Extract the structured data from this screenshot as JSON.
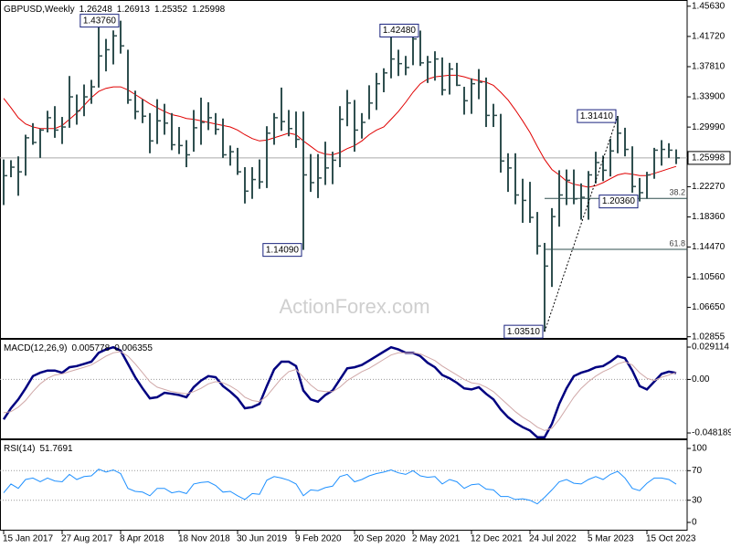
{
  "chart_data": [
    {
      "type": "ohlc",
      "title": "GBPUSD,Weekly",
      "ohlc": [
        1.26248,
        1.26913,
        1.25352,
        1.25998
      ],
      "current_price": 1.25998,
      "watermark": "ActionForex.com",
      "color": "#2f4f4f",
      "categories": [
        "15 Jan 2017",
        null,
        null,
        null,
        null,
        null,
        null,
        null,
        "27 Aug 2017",
        null,
        null,
        null,
        null,
        null,
        null,
        null,
        "8 Apr 2018",
        null,
        null,
        null,
        null,
        null,
        null,
        null,
        "18 Nov 2018",
        null,
        null,
        null,
        null,
        null,
        null,
        null,
        "30 Jun 2019",
        null,
        null,
        null,
        null,
        null,
        null,
        null,
        "9 Feb 2020",
        null,
        null,
        null,
        null,
        null,
        null,
        null,
        "20 Sep 2020",
        null,
        null,
        null,
        null,
        null,
        null,
        null,
        "2 May 2021",
        null,
        null,
        null,
        null,
        null,
        null,
        null,
        "12 Dec 2021",
        null,
        null,
        null,
        null,
        null,
        null,
        null,
        "24 Jul 2022",
        null,
        null,
        null,
        null,
        null,
        null,
        null,
        "5 Mar 2023",
        null,
        null,
        null,
        null,
        null,
        null,
        null,
        "15 Oct 2023",
        null,
        null,
        null,
        null
      ],
      "high": [
        1.258,
        1.257,
        1.262,
        1.29,
        1.305,
        1.298,
        1.321,
        1.327,
        1.313,
        1.366,
        1.342,
        1.355,
        1.361,
        1.434,
        1.414,
        1.425,
        1.4376,
        1.4,
        1.347,
        1.336,
        1.318,
        1.336,
        1.33,
        1.318,
        1.3,
        1.283,
        1.322,
        1.338,
        1.332,
        1.318,
        1.311,
        1.276,
        1.273,
        1.248,
        1.248,
        1.258,
        1.301,
        1.318,
        1.351,
        1.322,
        1.32,
        1.32,
        1.265,
        1.265,
        1.281,
        1.268,
        1.327,
        1.348,
        1.335,
        1.318,
        1.354,
        1.37,
        1.376,
        1.424,
        1.4,
        1.392,
        1.422,
        1.4248,
        1.392,
        1.398,
        1.39,
        1.383,
        1.383,
        1.352,
        1.363,
        1.375,
        1.364,
        1.33,
        1.317,
        1.266,
        1.266,
        1.233,
        1.229,
        1.19,
        1.15,
        1.195,
        1.244,
        1.245,
        1.245,
        1.227,
        1.243,
        1.268,
        1.263,
        1.285,
        1.3141,
        1.299,
        1.275,
        1.234,
        1.242,
        1.273,
        1.283,
        1.279,
        1.271
      ],
      "low": [
        1.199,
        1.235,
        1.211,
        1.237,
        1.277,
        1.26,
        1.293,
        1.286,
        1.278,
        1.299,
        1.303,
        1.314,
        1.33,
        1.351,
        1.372,
        1.381,
        1.395,
        1.33,
        1.31,
        1.305,
        1.266,
        1.278,
        1.29,
        1.27,
        1.265,
        1.248,
        1.268,
        1.277,
        1.296,
        1.29,
        1.26,
        1.25,
        1.238,
        1.201,
        1.207,
        1.22,
        1.221,
        1.277,
        1.295,
        1.288,
        1.273,
        1.1409,
        1.216,
        1.208,
        1.225,
        1.226,
        1.248,
        1.301,
        1.268,
        1.285,
        1.31,
        1.322,
        1.345,
        1.363,
        1.366,
        1.367,
        1.38,
        1.379,
        1.357,
        1.36,
        1.341,
        1.342,
        1.353,
        1.316,
        1.317,
        1.336,
        1.3,
        1.3,
        1.241,
        1.216,
        1.2,
        1.176,
        1.176,
        1.135,
        1.0351,
        1.093,
        1.171,
        1.199,
        1.2,
        1.18,
        1.18,
        1.227,
        1.23,
        1.236,
        1.266,
        1.262,
        1.215,
        1.2036,
        1.207,
        1.233,
        1.25,
        1.26,
        1.252
      ],
      "close": [
        1.237,
        1.248,
        1.242,
        1.286,
        1.28,
        1.296,
        1.312,
        1.296,
        1.3,
        1.339,
        1.321,
        1.339,
        1.352,
        1.392,
        1.4,
        1.418,
        1.405,
        1.335,
        1.32,
        1.314,
        1.282,
        1.308,
        1.305,
        1.277,
        1.276,
        1.264,
        1.299,
        1.306,
        1.312,
        1.297,
        1.264,
        1.268,
        1.242,
        1.217,
        1.232,
        1.229,
        1.292,
        1.312,
        1.307,
        1.298,
        1.284,
        1.238,
        1.228,
        1.234,
        1.247,
        1.257,
        1.31,
        1.331,
        1.296,
        1.306,
        1.331,
        1.356,
        1.37,
        1.388,
        1.382,
        1.377,
        1.414,
        1.383,
        1.384,
        1.388,
        1.348,
        1.375,
        1.354,
        1.334,
        1.356,
        1.358,
        1.315,
        1.315,
        1.256,
        1.247,
        1.212,
        1.205,
        1.183,
        1.146,
        1.12,
        1.184,
        1.212,
        1.231,
        1.207,
        1.209,
        1.238,
        1.254,
        1.244,
        1.269,
        1.292,
        1.271,
        1.223,
        1.215,
        1.238,
        1.27,
        1.271,
        1.27,
        1.26
      ],
      "sma": {
        "color": "#e00000",
        "values": [
          1.337,
          1.325,
          1.312,
          1.304,
          1.3,
          1.298,
          1.298,
          1.298,
          1.302,
          1.31,
          1.318,
          1.328,
          1.338,
          1.346,
          1.35,
          1.352,
          1.352,
          1.348,
          1.342,
          1.336,
          1.33,
          1.325,
          1.32,
          1.316,
          1.314,
          1.311,
          1.31,
          1.308,
          1.306,
          1.304,
          1.302,
          1.3,
          1.296,
          1.29,
          1.285,
          1.282,
          1.283,
          1.286,
          1.289,
          1.292,
          1.29,
          1.282,
          1.275,
          1.268,
          1.265,
          1.264,
          1.267,
          1.272,
          1.276,
          1.282,
          1.29,
          1.296,
          1.3,
          1.31,
          1.32,
          1.332,
          1.345,
          1.356,
          1.362,
          1.365,
          1.366,
          1.367,
          1.367,
          1.365,
          1.362,
          1.36,
          1.358,
          1.354,
          1.345,
          1.335,
          1.322,
          1.308,
          1.293,
          1.275,
          1.258,
          1.245,
          1.238,
          1.23,
          1.226,
          1.224,
          1.222,
          1.224,
          1.228,
          1.233,
          1.238,
          1.24,
          1.239,
          1.237,
          1.237,
          1.24,
          1.243,
          1.246,
          1.249
        ]
      },
      "annotations": [
        {
          "value": 1.4376,
          "label": "1.43760"
        },
        {
          "value": 1.4248,
          "label": "1.42480"
        },
        {
          "value": 1.1409,
          "label": "1.14090"
        },
        {
          "value": 1.0351,
          "label": "1.03510"
        },
        {
          "value": 1.3141,
          "label": "1.31410"
        },
        {
          "value": 1.2036,
          "label": "1.20360"
        }
      ],
      "fib": [
        {
          "ratio": 38.2,
          "value": 1.2075
        },
        {
          "ratio": 61.8,
          "value": 1.1417
        }
      ],
      "ylim": [
        1.027,
        1.462
      ],
      "yticks": [
        {
          "value": 1.4563,
          "label": "1.45630"
        },
        {
          "value": 1.4172,
          "label": "1.41720"
        },
        {
          "value": 1.3781,
          "label": "1.37810"
        },
        {
          "value": 1.339,
          "label": "1.33900"
        },
        {
          "value": 1.2999,
          "label": "1.29990"
        },
        {
          "value": 1.2227,
          "label": "1.22270"
        },
        {
          "value": 1.1836,
          "label": "1.18360"
        },
        {
          "value": 1.1447,
          "label": "1.14470"
        },
        {
          "value": 1.1056,
          "label": "1.10560"
        },
        {
          "value": 1.0665,
          "label": "1.06650"
        },
        {
          "value": 1.02855,
          "label": "1.02855"
        }
      ]
    },
    {
      "type": "line",
      "title": "MACD(12,26,9)",
      "ylim": [
        -0.0531,
        0.0349
      ],
      "yticks": [
        0.029114,
        {
          "value": 0,
          "label": "0.00"
        },
        -0.048189
      ],
      "levels": [
        0
      ],
      "series": [
        {
          "color": "#000080",
          "values": [
            -0.036,
            -0.026,
            -0.018,
            -0.008,
            0.003,
            0.006,
            0.008,
            0.008,
            0.006,
            0.011,
            0.012,
            0.014,
            0.016,
            0.024,
            0.027,
            0.029,
            0.026,
            0.014,
            0.002,
            -0.008,
            -0.017,
            -0.016,
            -0.012,
            -0.013,
            -0.014,
            -0.016,
            -0.007,
            -0.001,
            0.003,
            0.002,
            -0.006,
            -0.011,
            -0.017,
            -0.026,
            -0.025,
            -0.022,
            -0.006,
            0.009,
            0.016,
            0.016,
            0.012,
            -0.01,
            -0.018,
            -0.02,
            -0.014,
            -0.01,
            0,
            0.01,
            0.011,
            0.013,
            0.017,
            0.021,
            0.025,
            0.029,
            0.027,
            0.024,
            0.024,
            0.021,
            0.015,
            0.011,
            0.004,
            0.001,
            -0.003,
            -0.008,
            -0.009,
            -0.007,
            -0.013,
            -0.018,
            -0.027,
            -0.034,
            -0.039,
            -0.043,
            -0.046,
            -0.052,
            -0.052,
            -0.04,
            -0.022,
            -0.008,
            0.003,
            0.006,
            0.008,
            0.011,
            0.012,
            0.016,
            0.021,
            0.019,
            0.008,
            -0.006,
            -0.009,
            -0.002,
            0.005,
            0.007,
            0.005778
          ]
        },
        {
          "color": "#d0a8a8",
          "values": [
            -0.03,
            -0.029,
            -0.025,
            -0.019,
            -0.011,
            -0.004,
            0.001,
            0.004,
            0.005,
            0.007,
            0.009,
            0.011,
            0.013,
            0.017,
            0.021,
            0.024,
            0.025,
            0.021,
            0.014,
            0.006,
            -0.002,
            -0.007,
            -0.009,
            -0.011,
            -0.012,
            -0.013,
            -0.011,
            -0.008,
            -0.004,
            -0.002,
            -0.003,
            -0.006,
            -0.01,
            -0.016,
            -0.019,
            -0.02,
            -0.015,
            -0.007,
            0.001,
            0.007,
            0.009,
            0.002,
            -0.005,
            -0.01,
            -0.011,
            -0.011,
            -0.007,
            -0.001,
            0.003,
            0.007,
            0.01,
            0.014,
            0.018,
            0.022,
            0.024,
            0.024,
            0.024,
            0.023,
            0.02,
            0.017,
            0.012,
            0.008,
            0.004,
            0,
            -0.003,
            -0.004,
            -0.007,
            -0.011,
            -0.017,
            -0.023,
            -0.029,
            -0.034,
            -0.038,
            -0.043,
            -0.046,
            -0.044,
            -0.036,
            -0.026,
            -0.016,
            -0.008,
            -0.002,
            0.003,
            0.007,
            0.01,
            0.014,
            0.016,
            0.013,
            0.006,
            0.001,
            -0.001,
            0.002,
            0.004,
            0.006355
          ]
        }
      ]
    },
    {
      "type": "line",
      "title": "RSI(14)",
      "ylim": [
        -9.9,
        109.9
      ],
      "yticks": [
        100,
        70,
        30,
        0
      ],
      "levels": [
        70,
        30
      ],
      "series": [
        {
          "color": "#1e90ff",
          "values": [
            40,
            52,
            46,
            58,
            60,
            55,
            60,
            56,
            55,
            65,
            58,
            62,
            63,
            72,
            68,
            71,
            66,
            46,
            42,
            41,
            36,
            46,
            46,
            40,
            42,
            39,
            52,
            54,
            55,
            50,
            41,
            42,
            36,
            31,
            39,
            38,
            57,
            62,
            60,
            57,
            52,
            36,
            44,
            43,
            47,
            49,
            62,
            65,
            55,
            58,
            63,
            66,
            68,
            71,
            67,
            65,
            70,
            63,
            61,
            62,
            52,
            58,
            55,
            46,
            51,
            52,
            45,
            44,
            35,
            35,
            31,
            32,
            30,
            25,
            34,
            44,
            55,
            58,
            53,
            52,
            58,
            62,
            58,
            65,
            69,
            60,
            46,
            43,
            53,
            60,
            60,
            58,
            51.7691
          ]
        }
      ]
    }
  ]
}
